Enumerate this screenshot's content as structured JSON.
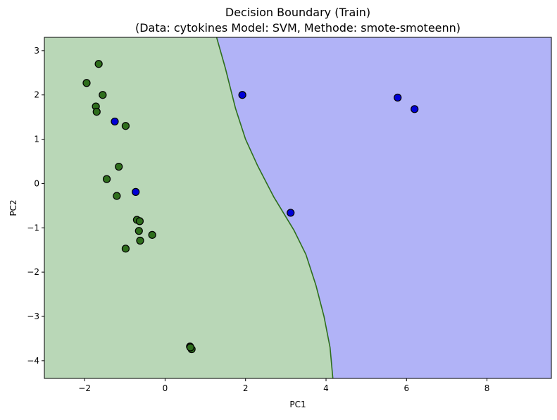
{
  "chart_data": {
    "type": "scatter",
    "title": "Decision Boundary (Train)",
    "subtitle": "(Data: cytokines Model: SVM, Methode: smote-smoteenn)",
    "xlabel": "PC1",
    "ylabel": "PC2",
    "xlim": [
      -3.0,
      9.6
    ],
    "ylim": [
      -4.4,
      3.3
    ],
    "xticks": [
      -2,
      0,
      2,
      4,
      6,
      8
    ],
    "yticks": [
      3,
      2,
      1,
      0,
      -1,
      -2,
      -3,
      -4
    ],
    "grid": false,
    "colors": {
      "region_green": "#b9d7b7",
      "region_blue": "#b1b3f7",
      "point_green": "#2e6e1c",
      "point_blue": "#0000d6",
      "boundary": "#2e6e1c"
    },
    "boundary": [
      {
        "x": 1.28,
        "y": 3.3
      },
      {
        "x": 1.5,
        "y": 2.6
      },
      {
        "x": 1.75,
        "y": 1.7
      },
      {
        "x": 2.0,
        "y": 1.0
      },
      {
        "x": 2.3,
        "y": 0.4
      },
      {
        "x": 2.7,
        "y": -0.3
      },
      {
        "x": 3.2,
        "y": -1.05
      },
      {
        "x": 3.5,
        "y": -1.6
      },
      {
        "x": 3.75,
        "y": -2.3
      },
      {
        "x": 3.95,
        "y": -3.0
      },
      {
        "x": 4.1,
        "y": -3.7
      },
      {
        "x": 4.17,
        "y": -4.4
      }
    ],
    "series": [
      {
        "class": "green",
        "points": [
          {
            "x": -1.65,
            "y": 2.7
          },
          {
            "x": -1.95,
            "y": 2.27
          },
          {
            "x": -1.55,
            "y": 2.0
          },
          {
            "x": -1.72,
            "y": 1.74
          },
          {
            "x": -1.7,
            "y": 1.62
          },
          {
            "x": -0.98,
            "y": 1.3
          },
          {
            "x": -1.15,
            "y": 0.38
          },
          {
            "x": -1.45,
            "y": 0.1
          },
          {
            "x": -1.2,
            "y": -0.28
          },
          {
            "x": -0.7,
            "y": -0.82
          },
          {
            "x": -0.63,
            "y": -0.85
          },
          {
            "x": -0.65,
            "y": -1.07
          },
          {
            "x": -0.62,
            "y": -1.29
          },
          {
            "x": -0.32,
            "y": -1.16
          },
          {
            "x": -0.98,
            "y": -1.47
          },
          {
            "x": 0.62,
            "y": -3.68
          },
          {
            "x": 0.66,
            "y": -3.74
          },
          {
            "x": 0.63,
            "y": -3.7
          }
        ]
      },
      {
        "class": "blue",
        "points": [
          {
            "x": -1.25,
            "y": 1.4
          },
          {
            "x": -0.73,
            "y": -0.19
          },
          {
            "x": 1.92,
            "y": 2.0
          },
          {
            "x": 3.12,
            "y": -0.66
          },
          {
            "x": 5.78,
            "y": 1.94
          },
          {
            "x": 6.2,
            "y": 1.68
          }
        ]
      }
    ]
  }
}
